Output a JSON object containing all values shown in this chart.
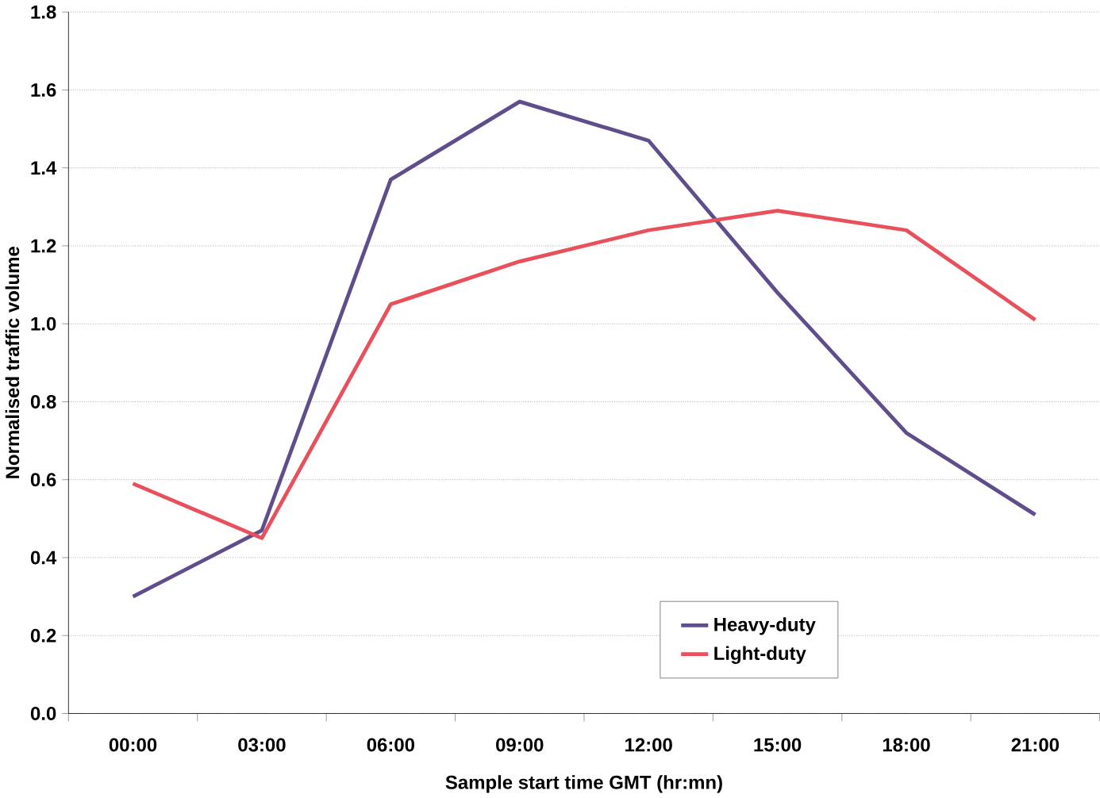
{
  "chart_data": {
    "type": "line",
    "xlabel": "Sample start time GMT (hr:mn)",
    "ylabel": "Normalised traffic volume",
    "categories": [
      "00:00",
      "03:00",
      "06:00",
      "09:00",
      "12:00",
      "15:00",
      "18:00",
      "21:00"
    ],
    "series": [
      {
        "name": "Heavy-duty",
        "color": "#5f4d8c",
        "values": [
          0.3,
          0.47,
          1.37,
          1.57,
          1.47,
          1.08,
          0.72,
          0.51
        ]
      },
      {
        "name": "Light-duty",
        "color": "#e8505b",
        "values": [
          0.59,
          0.45,
          1.05,
          1.16,
          1.24,
          1.29,
          1.24,
          1.01
        ]
      }
    ],
    "ylim": [
      0,
      1.8
    ],
    "yticks": [
      {
        "value": 0,
        "label": "0.0"
      },
      {
        "value": 0.2,
        "label": "0.2"
      },
      {
        "value": 0.4,
        "label": "0.4"
      },
      {
        "value": 0.6,
        "label": "0.6"
      },
      {
        "value": 0.8,
        "label": "0.8"
      },
      {
        "value": 1.0,
        "label": "1.0"
      },
      {
        "value": 1.2,
        "label": "1.2"
      },
      {
        "value": 1.4,
        "label": "1.4"
      },
      {
        "value": 1.6,
        "label": "1.6"
      },
      {
        "value": 1.8,
        "label": "1.8"
      }
    ],
    "grid": "y",
    "legend": "bottom right",
    "marker": "none",
    "line_style": "solid"
  }
}
